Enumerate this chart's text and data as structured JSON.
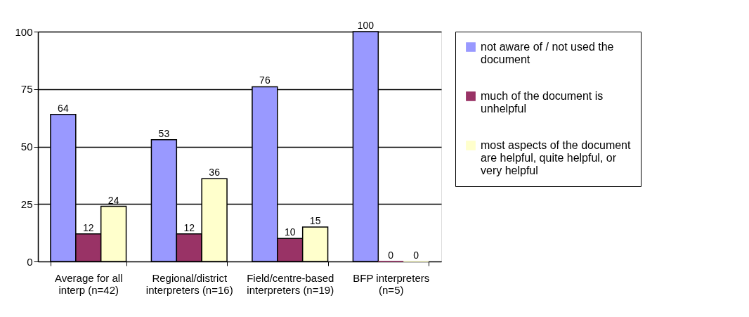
{
  "chart_data": {
    "type": "bar",
    "categories": [
      "Average for all interp (n=42)",
      "Regional/district interpreters (n=16)",
      "Field/centre-based interpreters (n=19)",
      "BFP interpreters (n=5)"
    ],
    "series": [
      {
        "name": "not aware of / not used the document",
        "color": "#9999ff",
        "values": [
          64,
          53,
          76,
          100
        ]
      },
      {
        "name": "much of the document is unhelpful",
        "color": "#993366",
        "values": [
          12,
          12,
          10,
          0
        ]
      },
      {
        "name": "most aspects of the document are helpful, quite helpful, or very helpful",
        "color": "#ffffcc",
        "values": [
          24,
          36,
          15,
          0
        ]
      }
    ],
    "ylim": [
      0,
      100
    ],
    "yticks": [
      0,
      25,
      50,
      75,
      100
    ],
    "grid": "y",
    "legend": "right",
    "data_labels": true
  }
}
